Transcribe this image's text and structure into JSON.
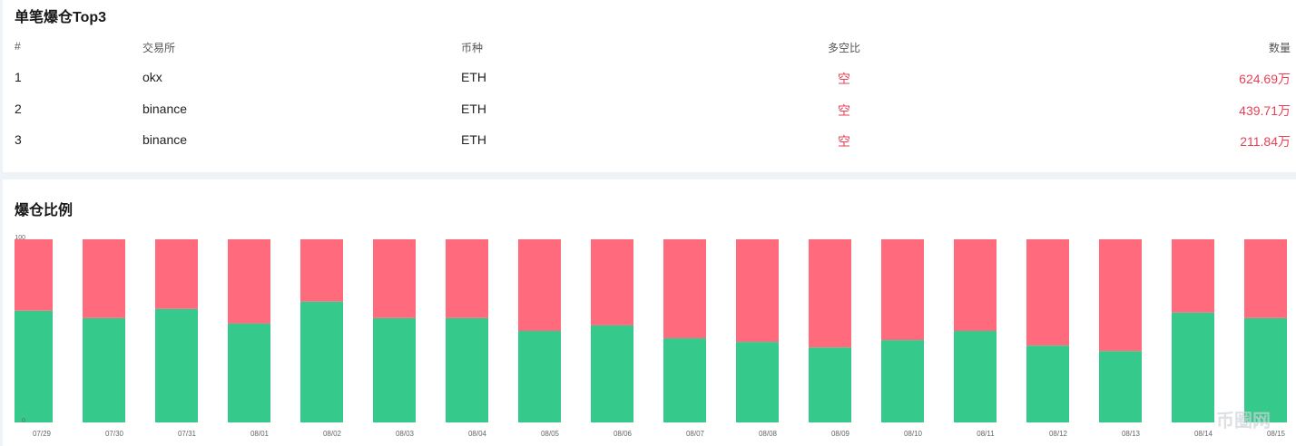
{
  "table": {
    "title": "单笔爆仓Top3",
    "columns": [
      "#",
      "交易所",
      "币种",
      "多空比",
      "数量"
    ],
    "rows": [
      [
        "1",
        "okx",
        "ETH",
        "空",
        "624.69万"
      ],
      [
        "2",
        "binance",
        "ETH",
        "空",
        "439.71万"
      ],
      [
        "3",
        "binance",
        "ETH",
        "空",
        "211.84万"
      ]
    ]
  },
  "chart_data": {
    "type": "bar",
    "stacked": true,
    "title": "爆仓比例",
    "categories": [
      "07/29",
      "07/30",
      "07/31",
      "08/01",
      "08/02",
      "08/03",
      "08/04",
      "08/05",
      "08/06",
      "08/07",
      "08/08",
      "08/09",
      "08/10",
      "08/11",
      "08/12",
      "08/13",
      "08/14",
      "08/15"
    ],
    "series": [
      {
        "color": "#35c98b",
        "values": [
          61,
          57,
          62,
          54,
          66,
          57,
          57,
          50,
          53,
          46,
          44,
          41,
          45,
          50,
          42,
          39,
          60,
          57
        ]
      },
      {
        "color": "#ff6b7d",
        "values": [
          39,
          43,
          38,
          46,
          34,
          43,
          43,
          50,
          47,
          54,
          56,
          59,
          55,
          50,
          58,
          61,
          40,
          43
        ]
      }
    ],
    "ylim": [
      0,
      100
    ],
    "yticks": [
      0,
      100
    ]
  },
  "watermark": "币圈网"
}
